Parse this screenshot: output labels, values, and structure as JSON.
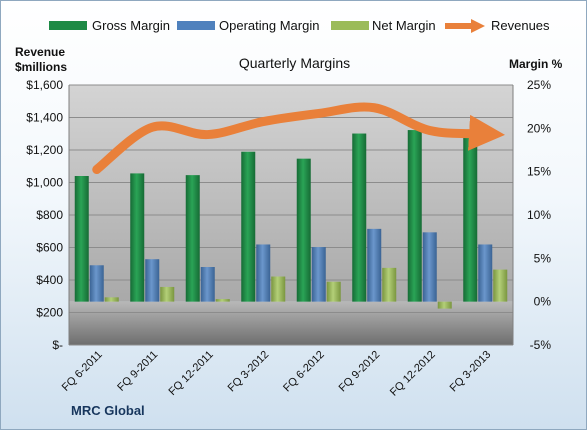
{
  "legend": [
    {
      "label": "Gross Margin",
      "color": "#1e8a45"
    },
    {
      "label": "Operating Margin",
      "color": "#4f81bd"
    },
    {
      "label": "Net Margin",
      "color": "#9bbb59"
    },
    {
      "label": "Revenues",
      "color": "#e9803a"
    }
  ],
  "left_axis_title": "Revenue $millions",
  "left_axis_title_lines": [
    "Revenue",
    "$millions"
  ],
  "right_axis_title": "Margin %",
  "source": "MRC Global",
  "chart_data": {
    "type": "bar",
    "title": "Quarterly Margins",
    "categories": [
      "FQ 6-2011",
      "FQ 9-2011",
      "FQ 12-2011",
      "FQ 3-2012",
      "FQ 6-2012",
      "FQ 9-2012",
      "FQ 12-2012",
      "FQ 3-2013"
    ],
    "series": [
      {
        "name": "Gross Margin",
        "axis": "right",
        "chart": "bar",
        "color": "#1e8a45",
        "values": [
          14.5,
          14.8,
          14.6,
          17.3,
          16.5,
          19.4,
          19.8,
          19.2
        ]
      },
      {
        "name": "Operating Margin",
        "axis": "right",
        "chart": "bar",
        "color": "#4f81bd",
        "values": [
          4.2,
          4.9,
          4.0,
          6.6,
          6.3,
          8.4,
          8.0,
          6.6
        ]
      },
      {
        "name": "Net Margin",
        "axis": "right",
        "chart": "bar",
        "color": "#9bbb59",
        "values": [
          0.5,
          1.7,
          0.3,
          2.9,
          2.3,
          3.9,
          -0.8,
          3.7
        ]
      },
      {
        "name": "Revenues",
        "axis": "left",
        "chart": "line",
        "color": "#e9803a",
        "values": [
          1080,
          1340,
          1295,
          1375,
          1425,
          1460,
          1320,
          1300
        ]
      }
    ],
    "y_left": {
      "label": "Revenue $millions",
      "min": 0,
      "max": 1600,
      "ticks": [
        "$-",
        "$200",
        "$400",
        "$600",
        "$800",
        "$1,000",
        "$1,200",
        "$1,400",
        "$1,600"
      ]
    },
    "y_right": {
      "label": "Margin %",
      "min": -5,
      "max": 25,
      "ticks": [
        "-5%",
        "0%",
        "5%",
        "10%",
        "15%",
        "20%",
        "25%"
      ]
    },
    "grid": true,
    "legend_position": "top"
  }
}
